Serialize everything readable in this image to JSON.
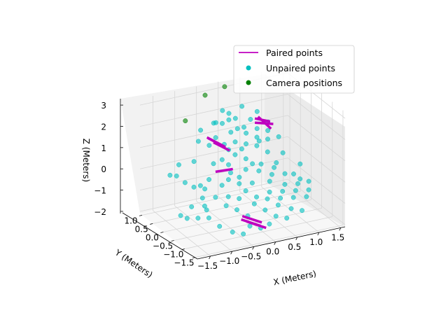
{
  "chart_data": {
    "type": "scatter",
    "projection": "3d",
    "grid": true,
    "xlabel": "X (Meters)",
    "ylabel": "Y (Meters)",
    "zlabel": "Z (Meters)",
    "xlim": [
      -1.8,
      1.6
    ],
    "ylim": [
      -1.6,
      1.1
    ],
    "zlim": [
      -2.1,
      3.3
    ],
    "x_ticks": [
      "−1.5",
      "−1.0",
      "−0.5",
      "0.0",
      "0.5",
      "1.0",
      "1.5"
    ],
    "y_ticks": [
      "1.0",
      "0.5",
      "0.0",
      "−0.5",
      "−1.0",
      "−1.5"
    ],
    "z_ticks": [
      "3",
      "2",
      "1",
      "0",
      "−1",
      "−2"
    ],
    "x_tick_values": [
      -1.5,
      -1.0,
      -0.5,
      0.0,
      0.5,
      1.0,
      1.5
    ],
    "y_tick_values": [
      1.0,
      0.5,
      0.0,
      -0.5,
      -1.0,
      -1.5
    ],
    "z_tick_values": [
      3,
      2,
      1,
      0,
      -1,
      -2
    ],
    "legend": {
      "placement": "top-right",
      "entries": [
        {
          "label": "Paired points",
          "marker": "line",
          "color": "#bf00bf"
        },
        {
          "label": "Unpaired points",
          "marker": "dot",
          "color": "#00bfbf"
        },
        {
          "label": "Camera positions",
          "marker": "dot",
          "color": "#008000"
        }
      ]
    },
    "series": [
      {
        "name": "Camera positions",
        "color": "#008000",
        "points": [
          [
            -1.0,
            0.6,
            2.3
          ],
          [
            -0.4,
            0.9,
            3.0
          ],
          [
            0.1,
            1.0,
            3.1
          ]
        ]
      },
      {
        "name": "Unpaired points",
        "color": "#00bfbf",
        "points": [
          [
            -1.5,
            0.3,
            0.2
          ],
          [
            -1.4,
            0.2,
            0.2
          ],
          [
            -1.2,
            0.5,
            0.4
          ],
          [
            -1.3,
            0.0,
            0.0
          ],
          [
            -1.5,
            -0.2,
            -1.3
          ],
          [
            -1.4,
            -0.3,
            -1.4
          ],
          [
            -1.2,
            -0.1,
            -1.1
          ],
          [
            -1.0,
            -0.4,
            -1.1
          ],
          [
            -1.0,
            0.2,
            -0.5
          ],
          [
            -1.1,
            -0.2,
            -1.6
          ],
          [
            -0.9,
            0.0,
            -0.9
          ],
          [
            -0.8,
            0.3,
            -0.6
          ],
          [
            -0.9,
            -0.3,
            -1.6
          ],
          [
            -0.8,
            0.1,
            -1.4
          ],
          [
            -0.6,
            0.0,
            -1.0
          ],
          [
            -0.7,
            0.3,
            -0.8
          ],
          [
            -0.5,
            0.5,
            1.0
          ],
          [
            -0.4,
            0.4,
            1.4
          ],
          [
            -0.3,
            0.2,
            1.2
          ],
          [
            -0.2,
            0.5,
            1.9
          ],
          [
            -0.1,
            0.3,
            1.6
          ],
          [
            0.0,
            0.6,
            1.9
          ],
          [
            0.1,
            0.4,
            1.6
          ],
          [
            -0.4,
            0.1,
            0.6
          ],
          [
            -0.3,
            0.0,
            0.4
          ],
          [
            -0.2,
            0.2,
            0.9
          ],
          [
            -0.1,
            0.1,
            0.7
          ],
          [
            0.0,
            0.3,
            1.1
          ],
          [
            0.1,
            0.0,
            0.5
          ],
          [
            0.2,
            0.2,
            1.0
          ],
          [
            0.3,
            0.4,
            1.3
          ],
          [
            0.4,
            0.1,
            0.9
          ],
          [
            0.5,
            0.3,
            1.1
          ],
          [
            0.6,
            0.0,
            0.6
          ],
          [
            0.7,
            0.2,
            1.0
          ],
          [
            -0.5,
            -0.1,
            -0.4
          ],
          [
            -0.4,
            -0.2,
            -0.1
          ],
          [
            -0.3,
            -0.1,
            0.1
          ],
          [
            -0.2,
            -0.3,
            -0.3
          ],
          [
            -0.1,
            -0.1,
            -0.2
          ],
          [
            0.0,
            -0.2,
            0.2
          ],
          [
            0.1,
            -0.3,
            -0.4
          ],
          [
            0.2,
            -0.1,
            0.3
          ],
          [
            0.3,
            -0.2,
            0.0
          ],
          [
            0.4,
            -0.1,
            0.2
          ],
          [
            0.5,
            -0.3,
            -0.5
          ],
          [
            0.6,
            -0.2,
            -0.3
          ],
          [
            0.7,
            -0.1,
            -0.1
          ],
          [
            0.8,
            0.0,
            0.0
          ],
          [
            0.9,
            -0.2,
            -0.4
          ],
          [
            -0.6,
            -0.5,
            -1.0
          ],
          [
            -0.5,
            -0.4,
            -0.7
          ],
          [
            -0.4,
            -0.6,
            -1.2
          ],
          [
            -0.3,
            -0.5,
            -0.8
          ],
          [
            -0.2,
            -0.7,
            -1.5
          ],
          [
            -0.1,
            -0.4,
            -0.6
          ],
          [
            0.0,
            -0.6,
            -1.1
          ],
          [
            0.1,
            -0.5,
            -0.9
          ],
          [
            0.2,
            -0.7,
            -1.4
          ],
          [
            0.3,
            -0.6,
            -1.0
          ],
          [
            0.4,
            -0.5,
            -0.8
          ],
          [
            0.5,
            -0.7,
            -1.3
          ],
          [
            0.6,
            -0.6,
            -1.1
          ],
          [
            0.7,
            -0.5,
            -0.9
          ],
          [
            0.8,
            -0.4,
            -0.7
          ],
          [
            0.9,
            -0.6,
            -1.2
          ],
          [
            1.0,
            -0.5,
            -1.0
          ],
          [
            1.1,
            -0.4,
            -0.8
          ],
          [
            1.2,
            -0.6,
            -1.3
          ],
          [
            1.3,
            -0.5,
            -1.1
          ],
          [
            1.1,
            -0.2,
            -0.5
          ],
          [
            1.2,
            -0.3,
            -0.7
          ],
          [
            1.0,
            0.1,
            0.3
          ],
          [
            1.3,
            -0.1,
            -0.2
          ],
          [
            1.4,
            -0.3,
            -0.9
          ],
          [
            -0.2,
            0.8,
            1.7
          ],
          [
            0.0,
            0.9,
            2.1
          ],
          [
            0.2,
            0.7,
            1.8
          ],
          [
            0.4,
            0.8,
            2.2
          ],
          [
            -0.6,
            0.7,
            1.6
          ],
          [
            0.6,
            0.5,
            1.3
          ],
          [
            0.8,
            0.4,
            1.2
          ],
          [
            1.0,
            0.3,
            0.9
          ],
          [
            0.9,
            0.6,
            1.4
          ],
          [
            -0.7,
            0.6,
            1.2
          ],
          [
            -0.8,
            -0.6,
            -1.8
          ],
          [
            -0.6,
            -0.8,
            -2.0
          ],
          [
            -0.4,
            -0.9,
            -2.1
          ],
          [
            -0.2,
            -0.8,
            -1.9
          ],
          [
            0.0,
            -0.9,
            -2.0
          ],
          [
            0.2,
            -0.9,
            -1.9
          ],
          [
            0.4,
            -0.8,
            -1.7
          ],
          [
            0.6,
            -0.9,
            -1.8
          ],
          [
            0.8,
            -0.7,
            -1.6
          ],
          [
            1.0,
            -0.8,
            -1.7
          ],
          [
            0.3,
            0.5,
            1.5
          ],
          [
            0.5,
            0.6,
            1.7
          ],
          [
            0.7,
            0.7,
            1.9
          ],
          [
            -0.3,
            0.7,
            1.8
          ],
          [
            0.1,
            0.8,
            2.0
          ],
          [
            -0.9,
            0.4,
            0.5
          ],
          [
            -0.7,
            0.1,
            -0.2
          ],
          [
            -0.5,
            0.3,
            0.3
          ],
          [
            0.2,
            0.4,
            0.6
          ],
          [
            0.6,
            0.4,
            0.8
          ]
        ]
      },
      {
        "name": "Paired points",
        "color": "#bf00bf",
        "segments": [
          [
            [
              -0.6,
              0.4,
              1.5
            ],
            [
              -0.3,
              0.2,
              1.1
            ]
          ],
          [
            [
              -0.55,
              0.45,
              1.4
            ],
            [
              -0.25,
              0.25,
              1.0
            ]
          ],
          [
            [
              -0.5,
              0.3,
              1.3
            ],
            [
              -0.2,
              0.15,
              0.9
            ]
          ],
          [
            [
              -0.6,
              0.0,
              0.2
            ],
            [
              -0.2,
              0.0,
              0.15
            ]
          ],
          [
            [
              0.6,
              0.6,
              1.7
            ],
            [
              0.9,
              0.5,
              1.5
            ]
          ],
          [
            [
              0.55,
              0.5,
              1.6
            ],
            [
              0.95,
              0.45,
              1.4
            ]
          ],
          [
            [
              0.65,
              0.55,
              1.8
            ],
            [
              0.85,
              0.35,
              1.3
            ]
          ],
          [
            [
              -0.4,
              -0.8,
              -1.5
            ],
            [
              0.0,
              -0.9,
              -1.9
            ]
          ],
          [
            [
              -0.35,
              -0.75,
              -1.4
            ],
            [
              0.05,
              -0.85,
              -1.8
            ]
          ],
          [
            [
              -0.3,
              -0.85,
              -1.6
            ],
            [
              0.1,
              -0.95,
              -2.0
            ]
          ]
        ]
      }
    ]
  }
}
